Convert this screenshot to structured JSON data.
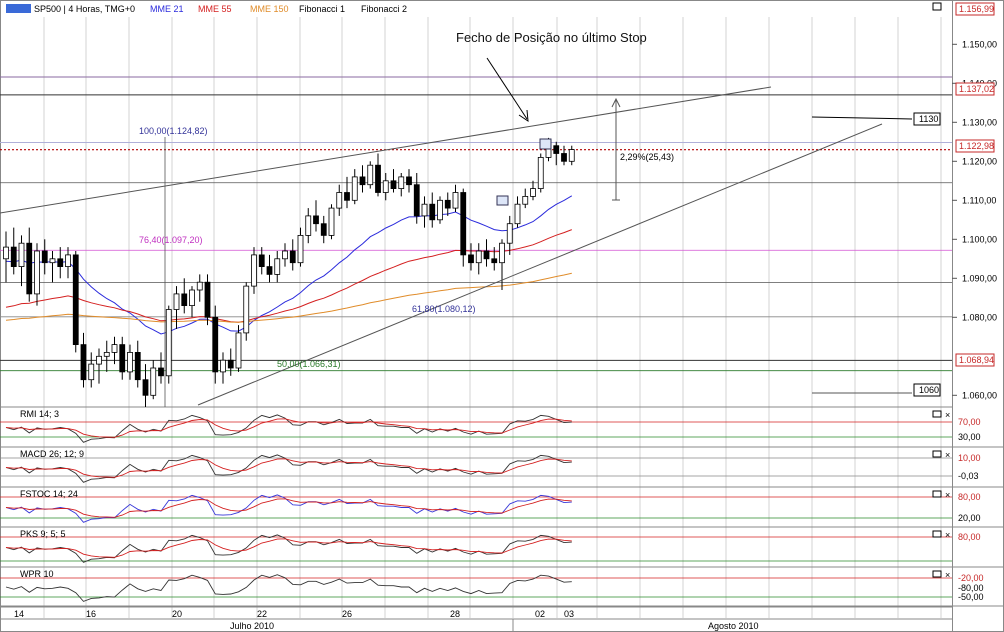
{
  "colors": {
    "background": "#ffffff",
    "grid": "#9a9a9a",
    "candle_up": "#ffffff",
    "candle_down": "#000000",
    "mme21": "#2b2bdc",
    "mme55": "#d42020",
    "mme150": "#e08c2a",
    "price_line": "#b00000",
    "fib_top": "#b0b0d8",
    "fib_mid": "#d24fd2",
    "fib_low": "#2a7a2a",
    "channel": "#555555",
    "label_price": "#c62828",
    "osc_black": "#333333",
    "osc_red": "#d42020",
    "osc_blue": "#3838d8",
    "osc_green_level": "#2a8a2a"
  },
  "header": {
    "symbol": "SP500 | 4 Horas, TMG+0",
    "ind1": "MME 21",
    "ind2": "MME 55",
    "ind3": "MME 150",
    "ind4": "Fibonacci 1",
    "ind5": "Fibonacci 2"
  },
  "annotations": {
    "arrow_text": "Fecho de Posição no último Stop",
    "move_pct": "2,29%(25,43)",
    "level_1130": "1130",
    "level_1060": "1060",
    "fib_100": "100,00(1.124,82)",
    "fib_764": "76,40(1.097,20)",
    "fib_618": "61,80(1.080,12)",
    "fib_50": "50,00(1.066,31)"
  },
  "price_axis": {
    "ticks": [
      "1.150,00",
      "1.140,00",
      "1.130,00",
      "1.120,00",
      "1.110,00",
      "1.100,00",
      "1.090,00",
      "1.080,00",
      "1.060,00"
    ],
    "top_label": "1.156,99",
    "label_1137": "1.137,02",
    "label_last": "1.122,98",
    "label_1068": "1.068,94"
  },
  "chart_data": {
    "type": "candlestick",
    "symbol": "SP500",
    "timeframe": "4 Horas",
    "ylim": [
      1057,
      1157
    ],
    "last_price": 1122.98,
    "candles": [
      {
        "o": 1095,
        "h": 1102,
        "l": 1089,
        "c": 1098
      },
      {
        "o": 1098,
        "h": 1103,
        "l": 1091,
        "c": 1093
      },
      {
        "o": 1093,
        "h": 1101,
        "l": 1088,
        "c": 1099
      },
      {
        "o": 1099,
        "h": 1103,
        "l": 1084,
        "c": 1086
      },
      {
        "o": 1086,
        "h": 1099,
        "l": 1083,
        "c": 1097
      },
      {
        "o": 1097,
        "h": 1100,
        "l": 1091,
        "c": 1094
      },
      {
        "o": 1094,
        "h": 1097,
        "l": 1089,
        "c": 1095
      },
      {
        "o": 1095,
        "h": 1098,
        "l": 1090,
        "c": 1093
      },
      {
        "o": 1093,
        "h": 1098,
        "l": 1090,
        "c": 1096
      },
      {
        "o": 1096,
        "h": 1097,
        "l": 1071,
        "c": 1073
      },
      {
        "o": 1073,
        "h": 1076,
        "l": 1062,
        "c": 1064
      },
      {
        "o": 1064,
        "h": 1071,
        "l": 1062,
        "c": 1068
      },
      {
        "o": 1068,
        "h": 1072,
        "l": 1063,
        "c": 1070
      },
      {
        "o": 1070,
        "h": 1074,
        "l": 1066,
        "c": 1071
      },
      {
        "o": 1071,
        "h": 1075,
        "l": 1068,
        "c": 1073
      },
      {
        "o": 1073,
        "h": 1075,
        "l": 1064,
        "c": 1066
      },
      {
        "o": 1066,
        "h": 1073,
        "l": 1064,
        "c": 1071
      },
      {
        "o": 1071,
        "h": 1074,
        "l": 1062,
        "c": 1064
      },
      {
        "o": 1064,
        "h": 1068,
        "l": 1057,
        "c": 1060
      },
      {
        "o": 1060,
        "h": 1069,
        "l": 1059,
        "c": 1067
      },
      {
        "o": 1067,
        "h": 1071,
        "l": 1063,
        "c": 1065
      },
      {
        "o": 1065,
        "h": 1083,
        "l": 1063,
        "c": 1082
      },
      {
        "o": 1082,
        "h": 1088,
        "l": 1077,
        "c": 1086
      },
      {
        "o": 1086,
        "h": 1090,
        "l": 1081,
        "c": 1083
      },
      {
        "o": 1083,
        "h": 1088,
        "l": 1080,
        "c": 1087
      },
      {
        "o": 1087,
        "h": 1091,
        "l": 1084,
        "c": 1089
      },
      {
        "o": 1089,
        "h": 1091,
        "l": 1078,
        "c": 1080
      },
      {
        "o": 1080,
        "h": 1083,
        "l": 1063,
        "c": 1066
      },
      {
        "o": 1066,
        "h": 1071,
        "l": 1063,
        "c": 1069
      },
      {
        "o": 1069,
        "h": 1072,
        "l": 1065,
        "c": 1067
      },
      {
        "o": 1067,
        "h": 1078,
        "l": 1066,
        "c": 1076
      },
      {
        "o": 1076,
        "h": 1089,
        "l": 1074,
        "c": 1088
      },
      {
        "o": 1088,
        "h": 1098,
        "l": 1086,
        "c": 1096
      },
      {
        "o": 1096,
        "h": 1098,
        "l": 1091,
        "c": 1093
      },
      {
        "o": 1093,
        "h": 1096,
        "l": 1089,
        "c": 1091
      },
      {
        "o": 1091,
        "h": 1097,
        "l": 1089,
        "c": 1095
      },
      {
        "o": 1095,
        "h": 1099,
        "l": 1093,
        "c": 1097
      },
      {
        "o": 1097,
        "h": 1100,
        "l": 1092,
        "c": 1094
      },
      {
        "o": 1094,
        "h": 1103,
        "l": 1093,
        "c": 1101
      },
      {
        "o": 1101,
        "h": 1108,
        "l": 1099,
        "c": 1106
      },
      {
        "o": 1106,
        "h": 1110,
        "l": 1102,
        "c": 1104
      },
      {
        "o": 1104,
        "h": 1106,
        "l": 1099,
        "c": 1101
      },
      {
        "o": 1101,
        "h": 1109,
        "l": 1100,
        "c": 1108
      },
      {
        "o": 1108,
        "h": 1114,
        "l": 1106,
        "c": 1112
      },
      {
        "o": 1112,
        "h": 1116,
        "l": 1108,
        "c": 1110
      },
      {
        "o": 1110,
        "h": 1118,
        "l": 1109,
        "c": 1116
      },
      {
        "o": 1116,
        "h": 1119,
        "l": 1112,
        "c": 1114
      },
      {
        "o": 1114,
        "h": 1120,
        "l": 1113,
        "c": 1119
      },
      {
        "o": 1119,
        "h": 1122,
        "l": 1111,
        "c": 1112
      },
      {
        "o": 1112,
        "h": 1117,
        "l": 1110,
        "c": 1115
      },
      {
        "o": 1115,
        "h": 1118,
        "l": 1112,
        "c": 1113
      },
      {
        "o": 1113,
        "h": 1117,
        "l": 1111,
        "c": 1116
      },
      {
        "o": 1116,
        "h": 1118,
        "l": 1112,
        "c": 1114
      },
      {
        "o": 1114,
        "h": 1117,
        "l": 1104,
        "c": 1106
      },
      {
        "o": 1106,
        "h": 1111,
        "l": 1103,
        "c": 1109
      },
      {
        "o": 1109,
        "h": 1112,
        "l": 1103,
        "c": 1105
      },
      {
        "o": 1105,
        "h": 1111,
        "l": 1104,
        "c": 1110
      },
      {
        "o": 1110,
        "h": 1112,
        "l": 1106,
        "c": 1108
      },
      {
        "o": 1108,
        "h": 1114,
        "l": 1107,
        "c": 1112
      },
      {
        "o": 1112,
        "h": 1113,
        "l": 1093,
        "c": 1096
      },
      {
        "o": 1096,
        "h": 1099,
        "l": 1092,
        "c": 1094
      },
      {
        "o": 1094,
        "h": 1099,
        "l": 1091,
        "c": 1097
      },
      {
        "o": 1097,
        "h": 1100,
        "l": 1093,
        "c": 1095
      },
      {
        "o": 1095,
        "h": 1098,
        "l": 1092,
        "c": 1094
      },
      {
        "o": 1094,
        "h": 1100,
        "l": 1087,
        "c": 1099
      },
      {
        "o": 1099,
        "h": 1106,
        "l": 1096,
        "c": 1104
      },
      {
        "o": 1104,
        "h": 1111,
        "l": 1103,
        "c": 1109
      },
      {
        "o": 1109,
        "h": 1113,
        "l": 1108,
        "c": 1111
      },
      {
        "o": 1111,
        "h": 1115,
        "l": 1110,
        "c": 1113
      },
      {
        "o": 1113,
        "h": 1122,
        "l": 1112,
        "c": 1121
      },
      {
        "o": 1121,
        "h": 1126,
        "l": 1120,
        "c": 1124
      },
      {
        "o": 1124,
        "h": 1125,
        "l": 1119,
        "c": 1122
      },
      {
        "o": 1122,
        "h": 1124,
        "l": 1119,
        "c": 1120
      },
      {
        "o": 1120,
        "h": 1124,
        "l": 1119,
        "c": 1123
      }
    ],
    "x_tick_labels": [
      "14",
      "16",
      "20",
      "22",
      "26",
      "28",
      "02",
      "03"
    ],
    "x_month_labels": [
      "Julho 2010",
      "Agosto 2010"
    ],
    "levels": [
      1137.02,
      1124.82,
      1122.98,
      1114.5,
      1097.2,
      1088.9,
      1080.12,
      1068.94,
      1066.31,
      1057.2
    ],
    "indicators": {
      "rmi": {
        "label": "RMI 14; 3",
        "levels": [
          "70,00",
          "30,00"
        ]
      },
      "macd": {
        "label": "MACD 26; 12; 9",
        "levels": [
          "10,00",
          "-0,03"
        ]
      },
      "fstoc": {
        "label": "FSTOC 14; 24",
        "levels": [
          "80,00",
          "20,00"
        ]
      },
      "pks": {
        "label": "PKS 9; 5; 5",
        "levels": [
          "80,00"
        ]
      },
      "wpr": {
        "label": "WPR 10",
        "levels": [
          "-20,00",
          "-50,00",
          "-80,00"
        ]
      }
    }
  }
}
